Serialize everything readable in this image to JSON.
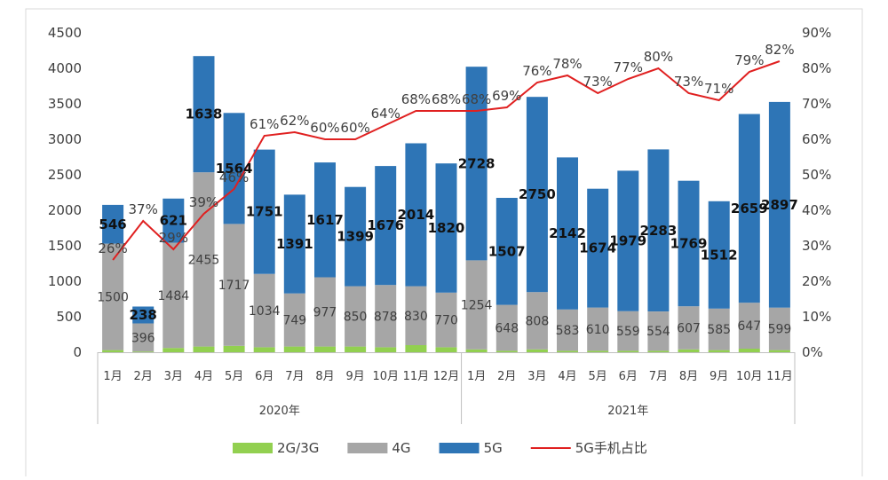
{
  "chart_data": {
    "type": "bar",
    "stacked": true,
    "categories": [
      "1月",
      "2月",
      "3月",
      "4月",
      "5月",
      "6月",
      "7月",
      "8月",
      "9月",
      "10月",
      "11月",
      "12月",
      "1月",
      "2月",
      "3月",
      "4月",
      "5月",
      "6月",
      "7月",
      "8月",
      "9月",
      "10月",
      "11月"
    ],
    "groups": [
      {
        "label": "2020年",
        "count": 12
      },
      {
        "label": "2021年",
        "count": 11
      }
    ],
    "series": [
      {
        "name": "2G/3G",
        "type": "bar",
        "color": "#92D050",
        "values": [
          30,
          10,
          60,
          80,
          90,
          70,
          80,
          80,
          80,
          70,
          100,
          70,
          40,
          20,
          40,
          20,
          20,
          20,
          20,
          40,
          30,
          50,
          30
        ]
      },
      {
        "name": "4G",
        "type": "bar",
        "color": "#A6A6A6",
        "values": [
          1500,
          396,
          1484,
          2455,
          1717,
          1034,
          749,
          977,
          850,
          878,
          830,
          770,
          1254,
          648,
          808,
          583,
          610,
          559,
          554,
          607,
          585,
          647,
          599
        ],
        "labels": [
          "1500",
          "396",
          "1484",
          "2455",
          "1717",
          "1034",
          "749",
          "977",
          "850",
          "878",
          "830",
          "770",
          "1254",
          "648",
          "808",
          "583",
          "610",
          "559",
          "554",
          "607",
          "585",
          "647",
          "599"
        ]
      },
      {
        "name": "5G",
        "type": "bar",
        "color": "#2E75B6",
        "values": [
          546,
          238,
          621,
          1638,
          1564,
          1751,
          1391,
          1617,
          1399,
          1676,
          2014,
          1820,
          2728,
          1507,
          2750,
          2142,
          1674,
          1979,
          2283,
          1769,
          1512,
          2659,
          2897
        ],
        "labels": [
          "546",
          "238",
          "621",
          "1638",
          "1564",
          "1751",
          "1391",
          "1617",
          "1399",
          "1676",
          "2014",
          "1820",
          "2728",
          "1507",
          "2750",
          "2142",
          "1674",
          "1979",
          "2283",
          "1769",
          "1512",
          "2659",
          "2897"
        ]
      },
      {
        "name": "5G手机占比",
        "type": "line",
        "axis": "right",
        "color": "#E02020",
        "values": [
          26,
          37,
          29,
          39,
          46,
          61,
          62,
          60,
          60,
          64,
          68,
          68,
          68,
          69,
          76,
          78,
          73,
          77,
          80,
          73,
          71,
          79,
          82
        ],
        "labels": [
          "26%",
          "37%",
          "29%",
          "39%",
          "46%",
          "61%",
          "62%",
          "60%",
          "60%",
          "64%",
          "68%",
          "68%",
          "68%",
          "69%",
          "76%",
          "78%",
          "73%",
          "77%",
          "80%",
          "73%",
          "71%",
          "79%",
          "82%"
        ]
      }
    ],
    "y_left": {
      "min": 0,
      "max": 4500,
      "ticks": [
        "0",
        "500",
        "1000",
        "1500",
        "2000",
        "2500",
        "3000",
        "3500",
        "4000",
        "4500"
      ]
    },
    "y_right": {
      "min": 0,
      "max": 90,
      "ticks": [
        "0%",
        "10%",
        "20%",
        "30%",
        "40%",
        "50%",
        "60%",
        "70%",
        "80%",
        "90%"
      ]
    },
    "legend_position": "bottom",
    "grid": false
  }
}
